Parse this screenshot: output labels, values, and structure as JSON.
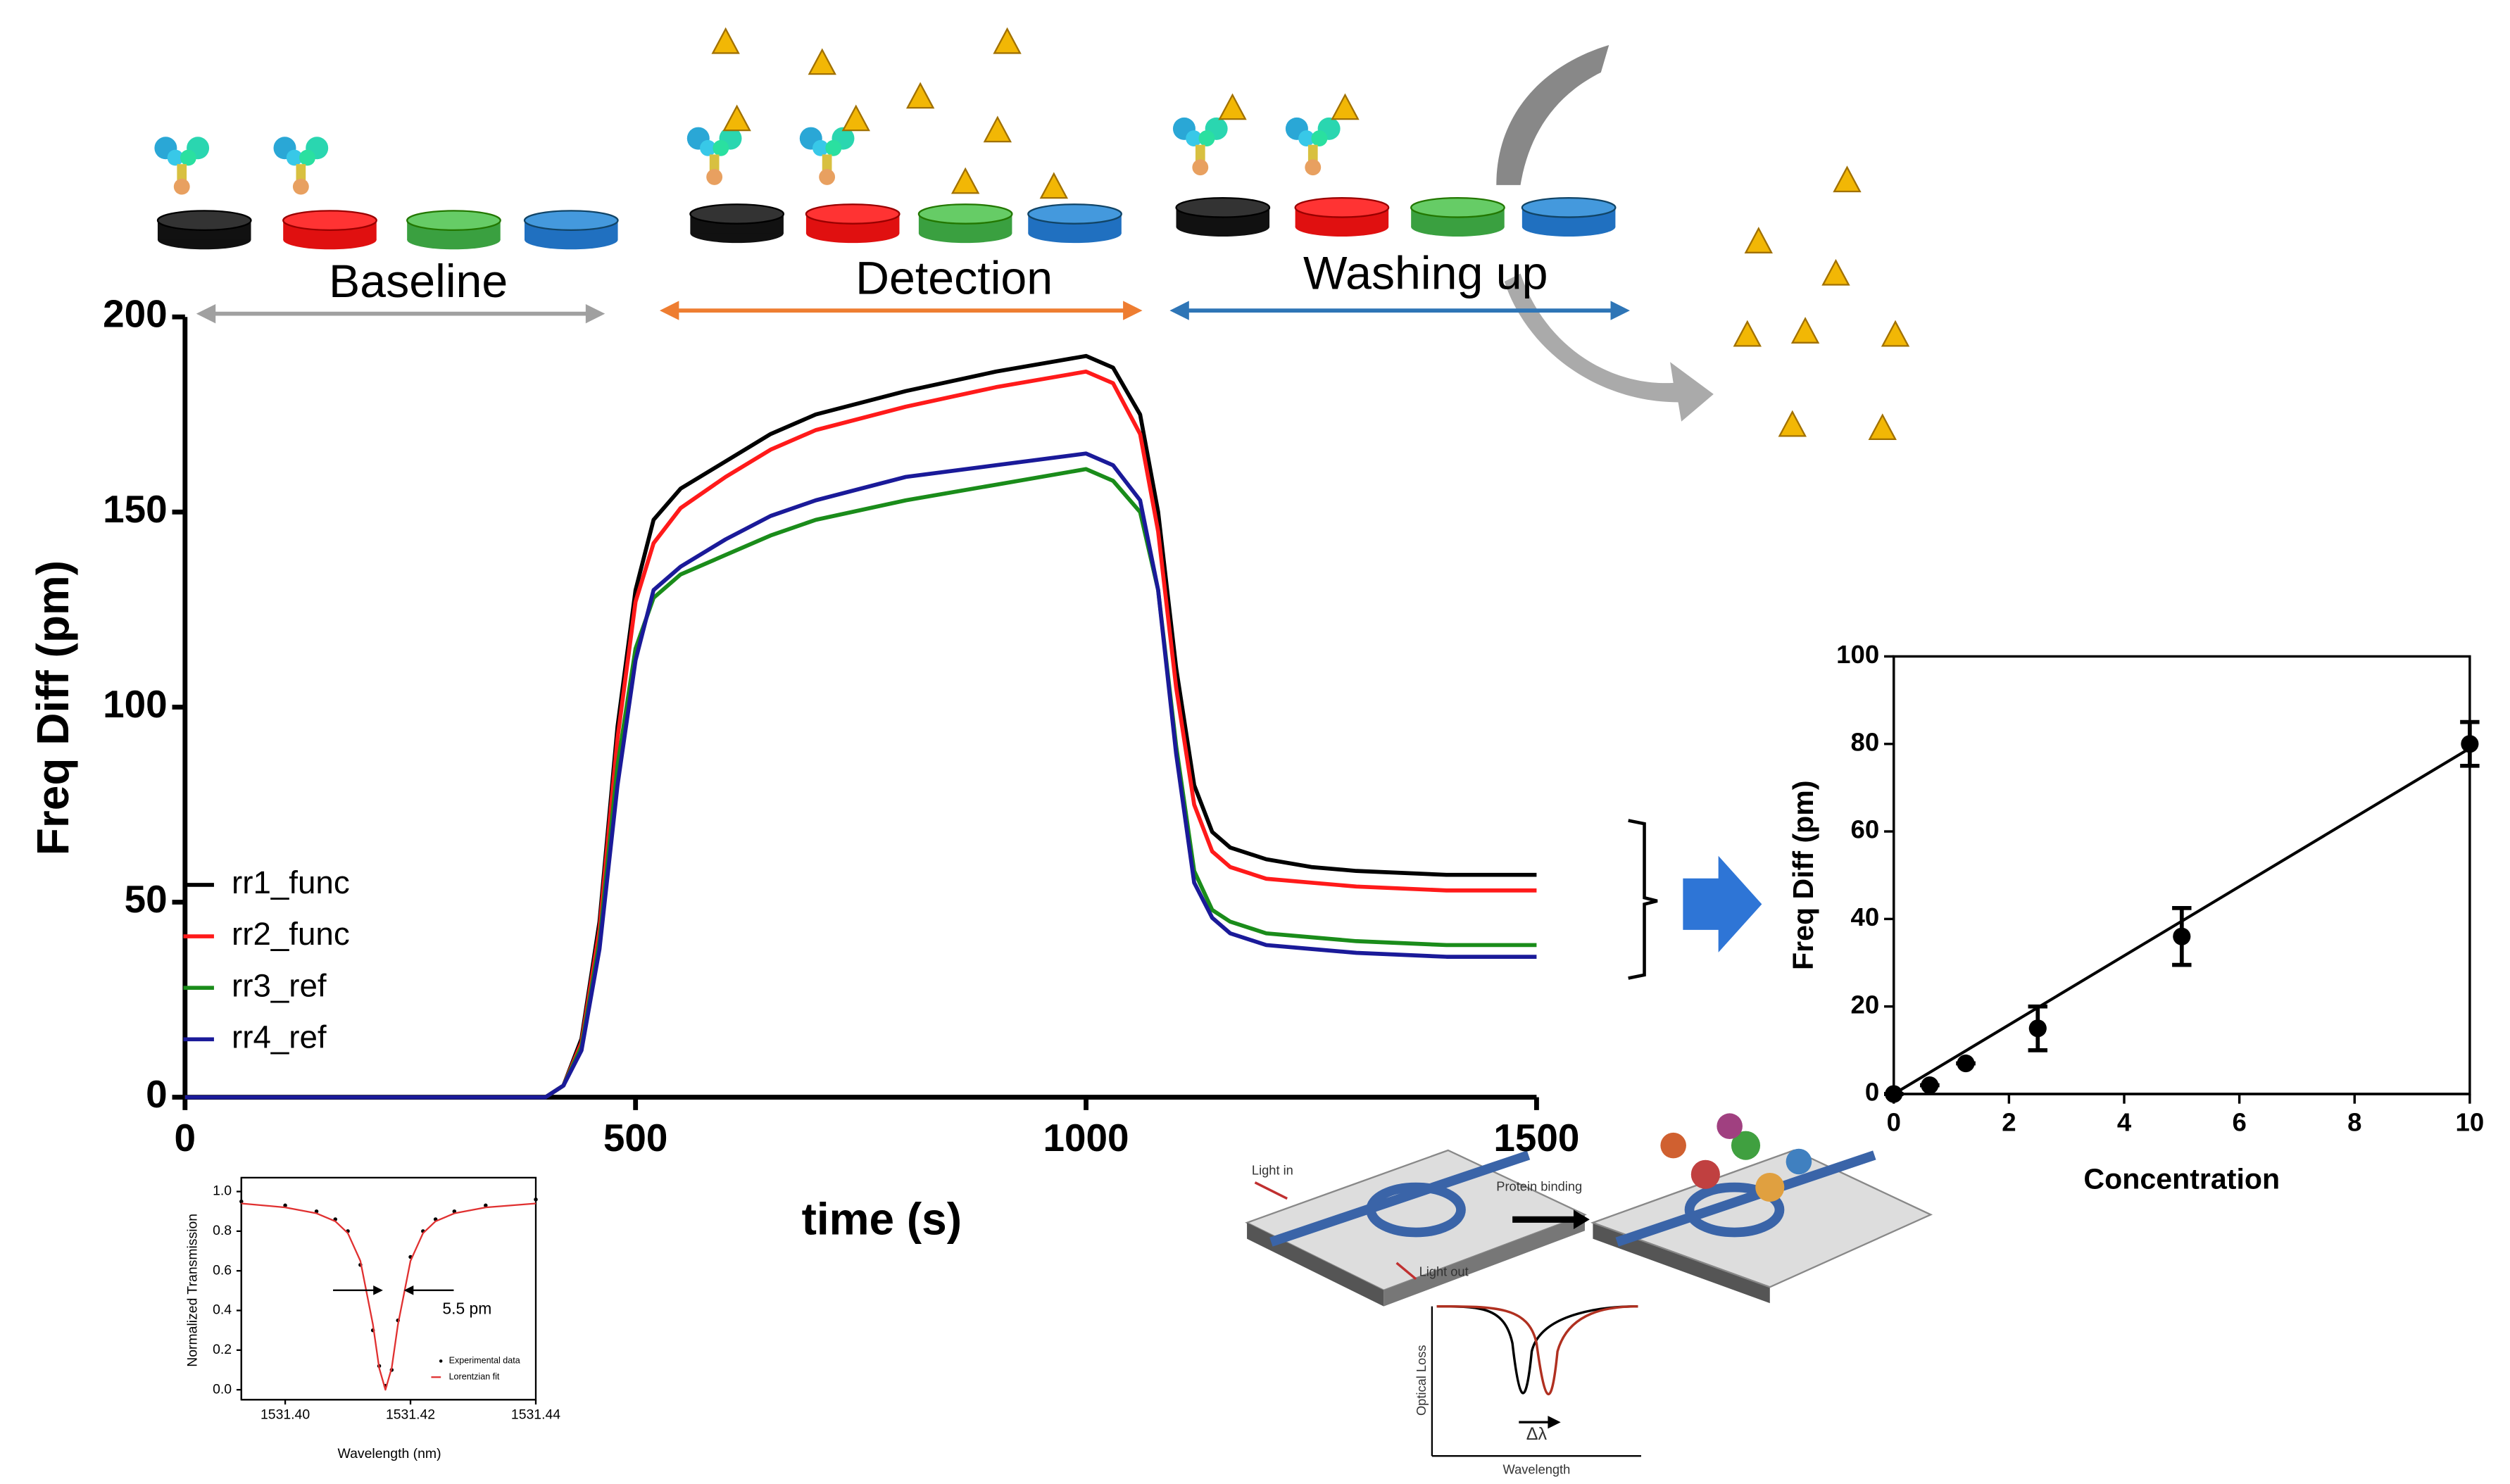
{
  "chart_data": [
    {
      "type": "line",
      "xlabel": "time (s)",
      "ylabel": "Freq Diff (pm)",
      "annotations": [
        "Baseline",
        "Detection",
        "Washing up"
      ],
      "xlim": [
        0,
        1500
      ],
      "ylim": [
        0,
        200
      ],
      "xticks": [
        0,
        500,
        1000,
        1500
      ],
      "yticks": [
        0,
        50,
        100,
        150,
        200
      ],
      "x": [
        0,
        100,
        200,
        300,
        400,
        420,
        440,
        460,
        480,
        500,
        520,
        550,
        600,
        650,
        700,
        800,
        900,
        1000,
        1030,
        1060,
        1080,
        1100,
        1120,
        1140,
        1160,
        1200,
        1250,
        1300,
        1400,
        1500
      ],
      "legend": "lower left",
      "series": [
        {
          "name": "rr1_func",
          "color": "#000000",
          "values": [
            0,
            0,
            0,
            0,
            0,
            3,
            15,
            45,
            95,
            130,
            148,
            156,
            163,
            170,
            175,
            181,
            186,
            190,
            187,
            175,
            150,
            110,
            80,
            68,
            64,
            61,
            59,
            58,
            57,
            57
          ]
        },
        {
          "name": "rr2_func",
          "color": "#ff1a1a",
          "values": [
            0,
            0,
            0,
            0,
            0,
            3,
            14,
            43,
            92,
            127,
            142,
            151,
            159,
            166,
            171,
            177,
            182,
            186,
            183,
            170,
            145,
            105,
            75,
            63,
            59,
            56,
            55,
            54,
            53,
            53
          ]
        },
        {
          "name": "rr3_ref",
          "color": "#1a8c1a",
          "values": [
            0,
            0,
            0,
            0,
            0,
            3,
            13,
            40,
            85,
            115,
            128,
            134,
            139,
            144,
            148,
            153,
            157,
            161,
            158,
            150,
            130,
            90,
            58,
            48,
            45,
            42,
            41,
            40,
            39,
            39
          ]
        },
        {
          "name": "rr4_ref",
          "color": "#1a1a99",
          "values": [
            0,
            0,
            0,
            0,
            0,
            3,
            12,
            38,
            80,
            112,
            130,
            136,
            143,
            149,
            153,
            159,
            162,
            165,
            162,
            153,
            130,
            88,
            55,
            46,
            42,
            39,
            38,
            37,
            36,
            36
          ]
        }
      ]
    },
    {
      "type": "scatter",
      "xlabel": "Concentration",
      "ylabel": "Freq Diff (pm)",
      "xlim": [
        0,
        10
      ],
      "ylim": [
        0,
        100
      ],
      "xticks": [
        0,
        2,
        4,
        6,
        8,
        10
      ],
      "yticks": [
        0,
        20,
        40,
        60,
        80,
        100
      ],
      "x": [
        0,
        0.625,
        1.25,
        2.5,
        5,
        10
      ],
      "values": [
        0,
        2,
        7,
        15,
        36,
        80
      ],
      "errors": [
        0,
        0,
        0,
        5,
        6.5,
        5
      ],
      "color": "#000000",
      "fit": {
        "x": [
          0,
          10
        ],
        "values": [
          0,
          79
        ]
      }
    },
    {
      "type": "line",
      "xlabel": "Wavelength (nm)",
      "ylabel": "Normalized Transmission",
      "annotations": [
        "5.5 pm"
      ],
      "xlim": [
        1531.393,
        1531.44
      ],
      "ylim": [
        -0.05,
        1.07
      ],
      "xticks": [
        {
          "value": 1531.4,
          "label": "1531.40"
        },
        {
          "value": 1531.42,
          "label": "1531.42"
        },
        {
          "value": 1531.44,
          "label": "1531.44"
        }
      ],
      "yticks": [
        {
          "value": 0,
          "label": "0.0"
        },
        {
          "value": 0.2,
          "label": "0.2"
        },
        {
          "value": 0.4,
          "label": "0.4"
        },
        {
          "value": 0.6,
          "label": "0.6"
        },
        {
          "value": 0.8,
          "label": "0.8"
        },
        {
          "value": 1,
          "label": "1.0"
        }
      ],
      "x": [
        1531.393,
        1531.4,
        1531.405,
        1531.408,
        1531.41,
        1531.412,
        1531.414,
        1531.415,
        1531.416,
        1531.417,
        1531.418,
        1531.42,
        1531.422,
        1531.424,
        1531.427,
        1531.432,
        1531.44
      ],
      "legend": "lower right",
      "series": [
        {
          "name": "Experimental data",
          "color": "#000000",
          "mode": "markers",
          "values": [
            0.95,
            0.93,
            0.9,
            0.86,
            0.8,
            0.63,
            0.3,
            0.12,
            0.02,
            0.1,
            0.35,
            0.67,
            0.8,
            0.86,
            0.9,
            0.93,
            0.96
          ]
        },
        {
          "name": "Lorentzian fit",
          "color": "#e03030",
          "mode": "lines",
          "values": [
            0.94,
            0.92,
            0.89,
            0.85,
            0.79,
            0.65,
            0.33,
            0.11,
            0,
            0.11,
            0.33,
            0.65,
            0.79,
            0.85,
            0.89,
            0.92,
            0.94
          ]
        }
      ]
    }
  ],
  "schematic": {
    "labels": [
      "Light in",
      "Protein binding",
      "Light out",
      "Optical Loss",
      "Wavelength",
      "Δλ"
    ]
  }
}
